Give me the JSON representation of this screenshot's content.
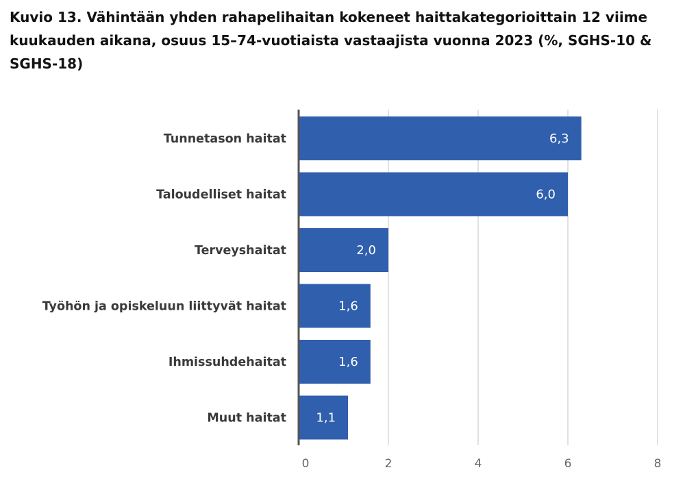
{
  "chart_data": {
    "type": "bar",
    "orientation": "horizontal",
    "title": "Kuvio 13. Vähintään yhden rahapelihaitan kokeneet haittakategorioittain 12 viime kuukauden aikana, osuus 15–74-vuotiaista vastaajista vuonna 2023 (%, SGHS-10 & SGHS-18)",
    "categories": [
      "Tunnetason haitat",
      "Taloudelliset haitat",
      "Terveyshaitat",
      "Työhön ja opiskeluun liittyvät haitat",
      "Ihmissuhdehaitat",
      "Muut haitat"
    ],
    "values": [
      6.3,
      6.0,
      2.0,
      1.6,
      1.6,
      1.1
    ],
    "value_labels": [
      "6,3",
      "6,0",
      "2,0",
      "1,6",
      "1,6",
      "1,1"
    ],
    "xlim": [
      0,
      8
    ],
    "xticks": [
      0,
      2,
      4,
      6,
      8
    ],
    "xtick_labels": [
      "0",
      "2",
      "4",
      "6",
      "8"
    ],
    "xlabel": "",
    "ylabel": "",
    "grid": "vertical",
    "legend": "none",
    "colors": {
      "bar": "#2f5fad",
      "grid": "#d4d8d8",
      "axis": "#555555"
    }
  }
}
